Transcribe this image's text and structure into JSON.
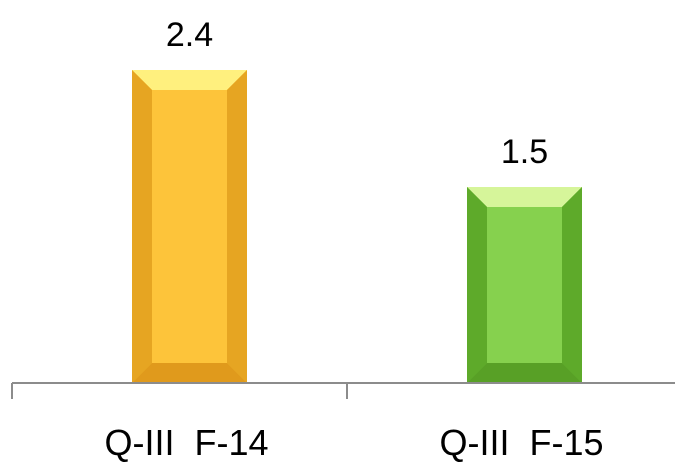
{
  "chart_data": {
    "type": "bar",
    "categories": [
      "Q-III  F-14",
      "Q-III  F-15"
    ],
    "values": [
      2.4,
      1.5
    ],
    "value_labels": [
      "2.4",
      "1.5"
    ],
    "title": "",
    "xlabel": "",
    "ylabel": "",
    "ylim": [
      0,
      2.4
    ],
    "grid": false,
    "legend": "none",
    "bar_style": "beveled",
    "colors": [
      {
        "base": "#F4B62E",
        "face": "#FDC43A",
        "top": "#FFF07E",
        "side": "#E6A522",
        "bottom": "#E09A1C"
      },
      {
        "base": "#6CBB33",
        "face": "#86D14E",
        "top": "#D6F59A",
        "side": "#5EAA2A",
        "bottom": "#58A026"
      }
    ],
    "axis_color": "#8C8C8C",
    "label_color": "#000000"
  }
}
